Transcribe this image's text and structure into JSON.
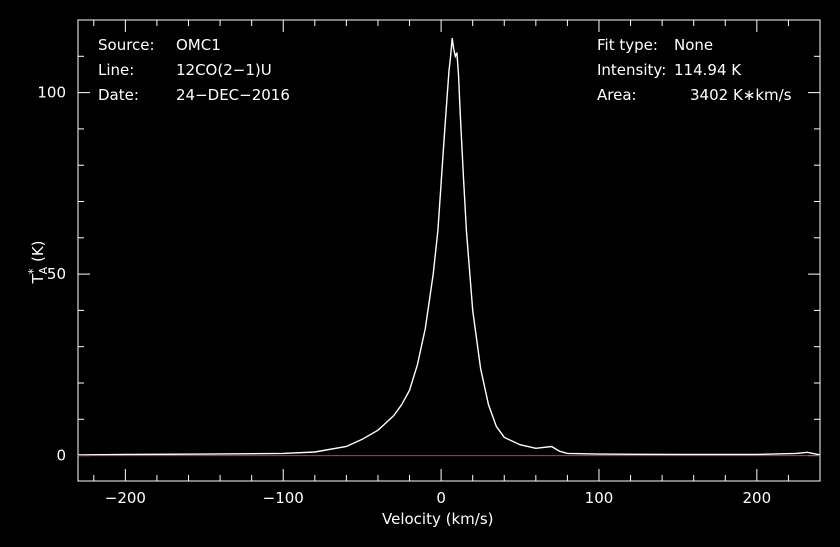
{
  "chart_data": {
    "type": "line",
    "xlabel": "Velocity (km/s)",
    "ylabel": "T",
    "ylabel_sup": "*",
    "ylabel_sub": "A",
    "ylabel_unit": "(K)",
    "xlim": [
      -230,
      240
    ],
    "ylim": [
      -7,
      120
    ],
    "x_ticks": [
      -200,
      -100,
      0,
      100,
      200
    ],
    "x_tick_labels": [
      "−200",
      "−100",
      "0",
      "100",
      "200"
    ],
    "y_ticks": [
      0,
      50,
      100
    ],
    "y_tick_labels": [
      "0",
      "50",
      "100"
    ],
    "grid": false,
    "series": [
      {
        "color": "#ffffff",
        "x": [
          -230,
          -200,
          -150,
          -100,
          -80,
          -60,
          -50,
          -40,
          -30,
          -25,
          -20,
          -15,
          -10,
          -5,
          -2,
          0,
          2,
          4,
          5,
          6,
          7,
          8,
          9,
          10,
          11,
          12,
          14,
          16,
          20,
          25,
          30,
          35,
          40,
          50,
          60,
          70,
          75,
          80,
          100,
          150,
          200,
          225,
          232,
          240
        ],
        "y": [
          0.2,
          0.3,
          0.4,
          0.6,
          1.0,
          2.5,
          4.5,
          7,
          11,
          14,
          18,
          25,
          35,
          50,
          62,
          75,
          88,
          100,
          106,
          110,
          115,
          112,
          110,
          111,
          105,
          95,
          78,
          62,
          40,
          24,
          14,
          8,
          5,
          3,
          2,
          2.5,
          1.2,
          0.6,
          0.4,
          0.3,
          0.3,
          0.6,
          0.9,
          0.2
        ]
      },
      {
        "color": "#e03030",
        "x": [
          -230,
          240
        ],
        "y": [
          0,
          0
        ]
      }
    ]
  },
  "annotations": {
    "source_label": "Source:",
    "source_value": "OMC1",
    "line_label": "Line:",
    "line_value": "12CO(2−1)U",
    "date_label": "Date:",
    "date_value": "24−DEC−2016",
    "fit_label": "Fit type:",
    "fit_value": "None",
    "intensity_label": "Intensity:",
    "intensity_value": "114.94 K",
    "area_label": "Area:",
    "area_value": "3402 K∗km/s"
  }
}
